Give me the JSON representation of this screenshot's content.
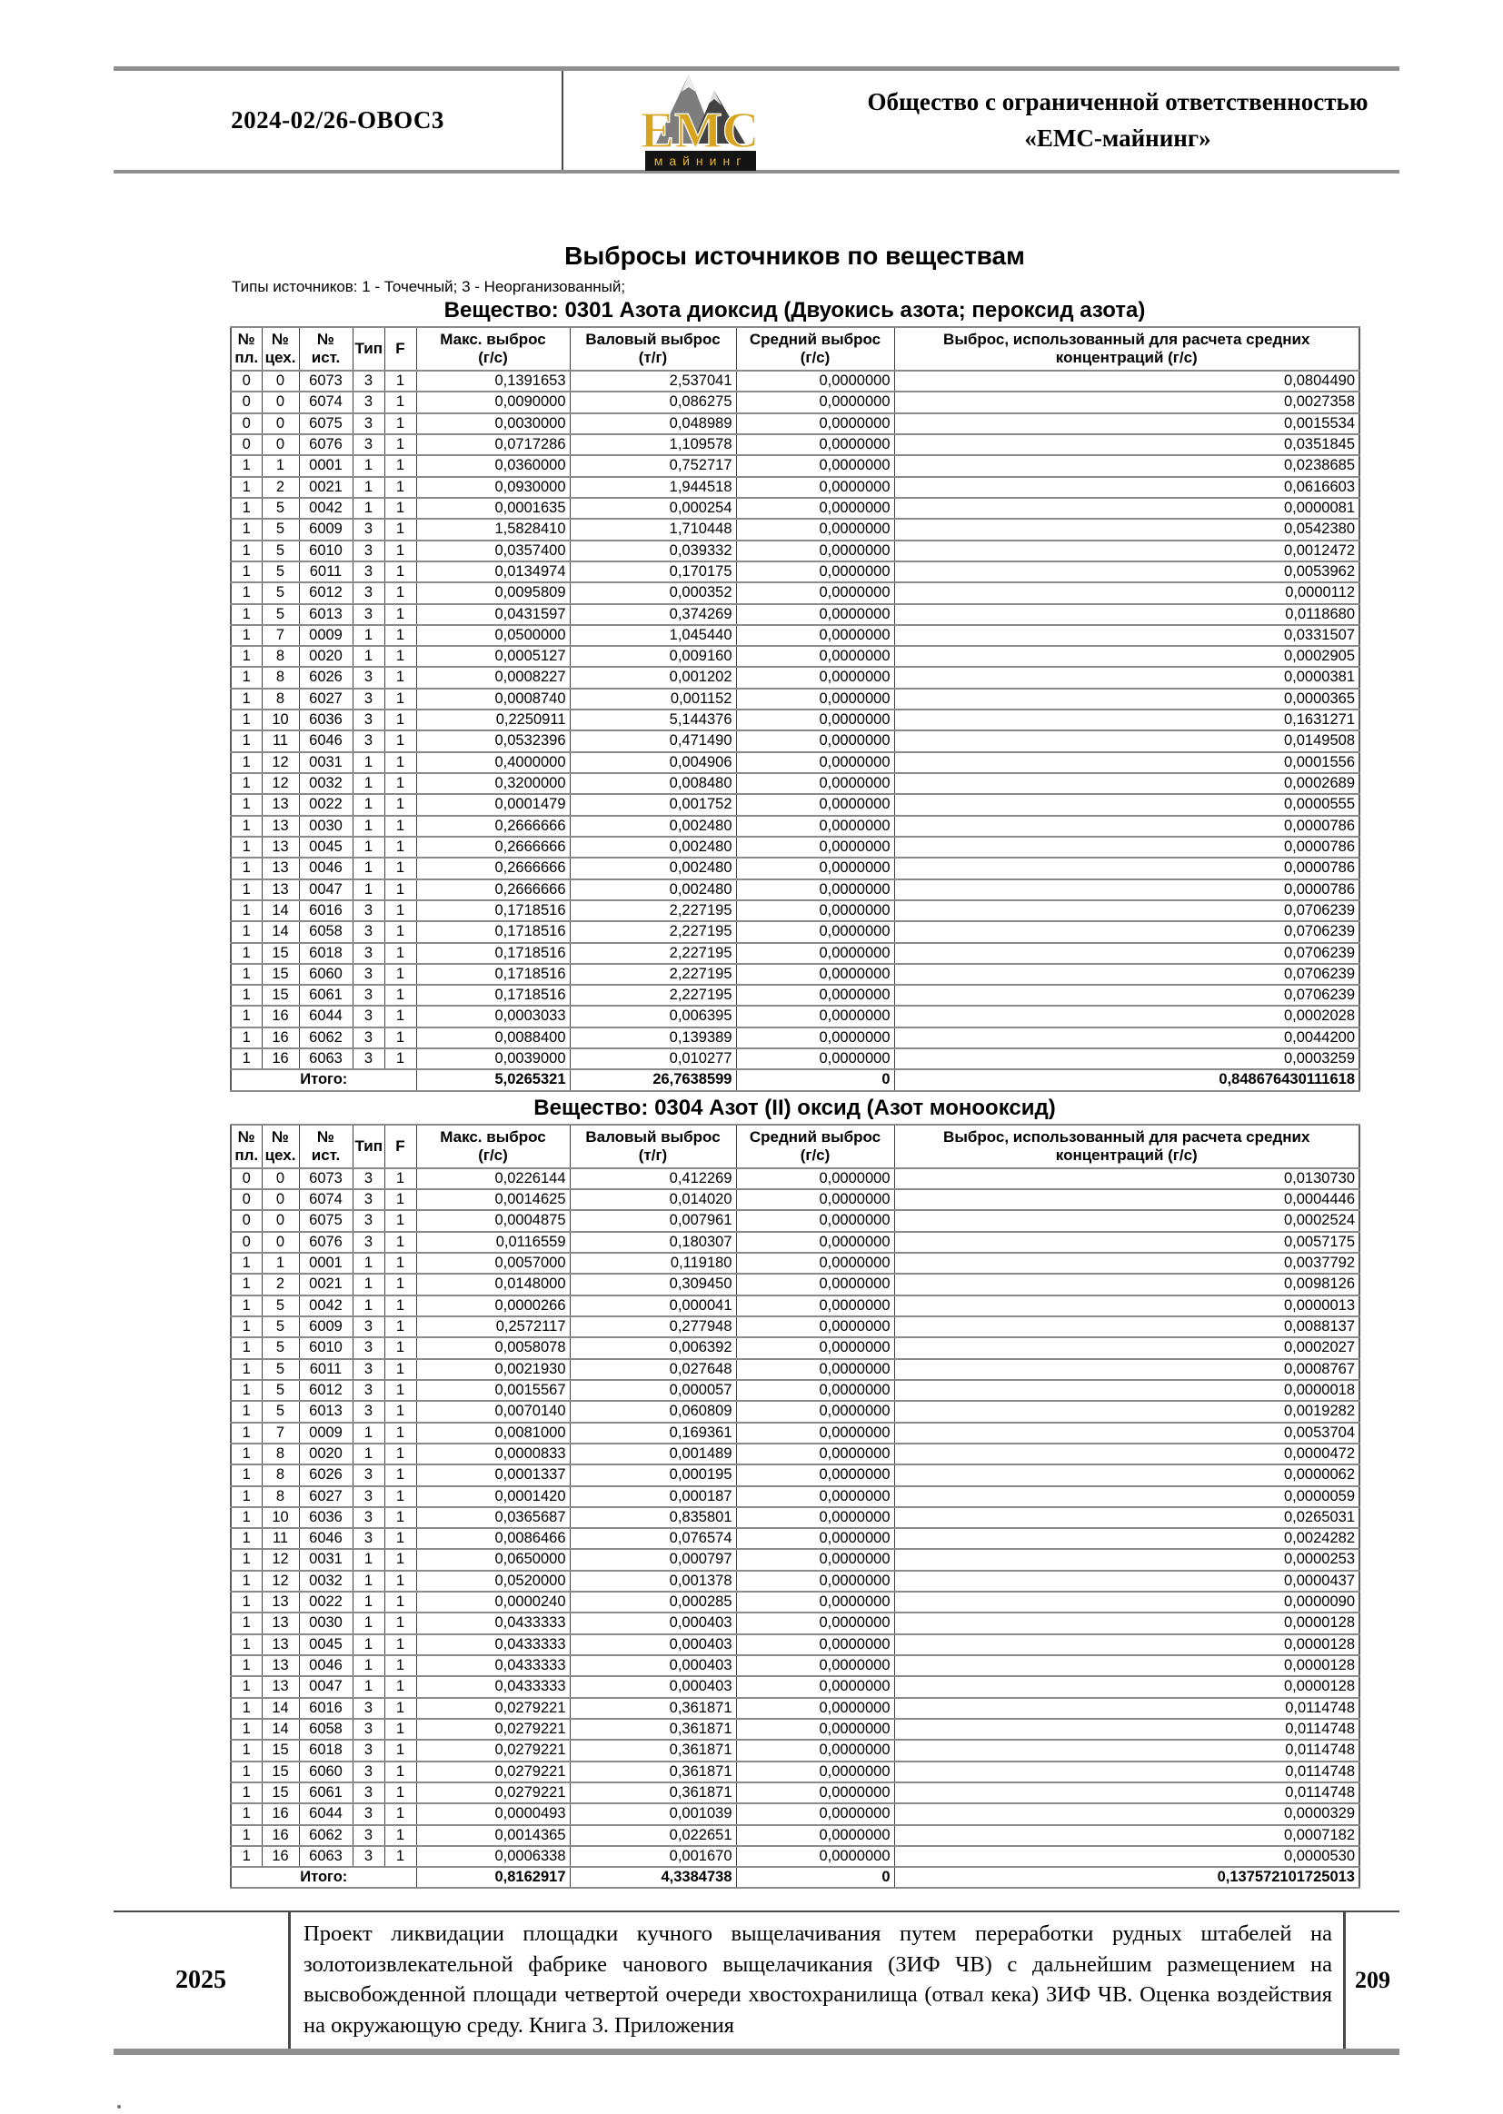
{
  "header": {
    "doc_number": "2024-02/26-ОВОС3",
    "logo": {
      "emc": "ЕМС",
      "mining": "майнинг"
    },
    "company_line1": "Общество с ограниченной ответственностью",
    "company_line2": "«ЕМС-майнинг»"
  },
  "page": {
    "title": "Выбросы источников по веществам",
    "source_types_note": "Типы источников: 1 - Точечный; 3 - Неорганизованный;"
  },
  "columns": [
    "№\nпл.",
    "№\nцех.",
    "№\nист.",
    "Тип",
    "F",
    "Макс. выброс\n(г/с)",
    "Валовый выброс\n(т/г)",
    "Средний выброс\n(г/с)",
    "Выброс, использованный для расчета средних\nконцентраций (г/с)"
  ],
  "tables": [
    {
      "title": "Вещество: 0301 Азота диоксид (Двуокись азота; пероксид азота)",
      "rows": [
        [
          "0",
          "0",
          "6073",
          "3",
          "1",
          "0,1391653",
          "2,537041",
          "0,0000000",
          "0,0804490"
        ],
        [
          "0",
          "0",
          "6074",
          "3",
          "1",
          "0,0090000",
          "0,086275",
          "0,0000000",
          "0,0027358"
        ],
        [
          "0",
          "0",
          "6075",
          "3",
          "1",
          "0,0030000",
          "0,048989",
          "0,0000000",
          "0,0015534"
        ],
        [
          "0",
          "0",
          "6076",
          "3",
          "1",
          "0,0717286",
          "1,109578",
          "0,0000000",
          "0,0351845"
        ],
        [
          "1",
          "1",
          "0001",
          "1",
          "1",
          "0,0360000",
          "0,752717",
          "0,0000000",
          "0,0238685"
        ],
        [
          "1",
          "2",
          "0021",
          "1",
          "1",
          "0,0930000",
          "1,944518",
          "0,0000000",
          "0,0616603"
        ],
        [
          "1",
          "5",
          "0042",
          "1",
          "1",
          "0,0001635",
          "0,000254",
          "0,0000000",
          "0,0000081"
        ],
        [
          "1",
          "5",
          "6009",
          "3",
          "1",
          "1,5828410",
          "1,710448",
          "0,0000000",
          "0,0542380"
        ],
        [
          "1",
          "5",
          "6010",
          "3",
          "1",
          "0,0357400",
          "0,039332",
          "0,0000000",
          "0,0012472"
        ],
        [
          "1",
          "5",
          "6011",
          "3",
          "1",
          "0,0134974",
          "0,170175",
          "0,0000000",
          "0,0053962"
        ],
        [
          "1",
          "5",
          "6012",
          "3",
          "1",
          "0,0095809",
          "0,000352",
          "0,0000000",
          "0,0000112"
        ],
        [
          "1",
          "5",
          "6013",
          "3",
          "1",
          "0,0431597",
          "0,374269",
          "0,0000000",
          "0,0118680"
        ],
        [
          "1",
          "7",
          "0009",
          "1",
          "1",
          "0,0500000",
          "1,045440",
          "0,0000000",
          "0,0331507"
        ],
        [
          "1",
          "8",
          "0020",
          "1",
          "1",
          "0,0005127",
          "0,009160",
          "0,0000000",
          "0,0002905"
        ],
        [
          "1",
          "8",
          "6026",
          "3",
          "1",
          "0,0008227",
          "0,001202",
          "0,0000000",
          "0,0000381"
        ],
        [
          "1",
          "8",
          "6027",
          "3",
          "1",
          "0,0008740",
          "0,001152",
          "0,0000000",
          "0,0000365"
        ],
        [
          "1",
          "10",
          "6036",
          "3",
          "1",
          "0,2250911",
          "5,144376",
          "0,0000000",
          "0,1631271"
        ],
        [
          "1",
          "11",
          "6046",
          "3",
          "1",
          "0,0532396",
          "0,471490",
          "0,0000000",
          "0,0149508"
        ],
        [
          "1",
          "12",
          "0031",
          "1",
          "1",
          "0,4000000",
          "0,004906",
          "0,0000000",
          "0,0001556"
        ],
        [
          "1",
          "12",
          "0032",
          "1",
          "1",
          "0,3200000",
          "0,008480",
          "0,0000000",
          "0,0002689"
        ],
        [
          "1",
          "13",
          "0022",
          "1",
          "1",
          "0,0001479",
          "0,001752",
          "0,0000000",
          "0,0000555"
        ],
        [
          "1",
          "13",
          "0030",
          "1",
          "1",
          "0,2666666",
          "0,002480",
          "0,0000000",
          "0,0000786"
        ],
        [
          "1",
          "13",
          "0045",
          "1",
          "1",
          "0,2666666",
          "0,002480",
          "0,0000000",
          "0,0000786"
        ],
        [
          "1",
          "13",
          "0046",
          "1",
          "1",
          "0,2666666",
          "0,002480",
          "0,0000000",
          "0,0000786"
        ],
        [
          "1",
          "13",
          "0047",
          "1",
          "1",
          "0,2666666",
          "0,002480",
          "0,0000000",
          "0,0000786"
        ],
        [
          "1",
          "14",
          "6016",
          "3",
          "1",
          "0,1718516",
          "2,227195",
          "0,0000000",
          "0,0706239"
        ],
        [
          "1",
          "14",
          "6058",
          "3",
          "1",
          "0,1718516",
          "2,227195",
          "0,0000000",
          "0,0706239"
        ],
        [
          "1",
          "15",
          "6018",
          "3",
          "1",
          "0,1718516",
          "2,227195",
          "0,0000000",
          "0,0706239"
        ],
        [
          "1",
          "15",
          "6060",
          "3",
          "1",
          "0,1718516",
          "2,227195",
          "0,0000000",
          "0,0706239"
        ],
        [
          "1",
          "15",
          "6061",
          "3",
          "1",
          "0,1718516",
          "2,227195",
          "0,0000000",
          "0,0706239"
        ],
        [
          "1",
          "16",
          "6044",
          "3",
          "1",
          "0,0003033",
          "0,006395",
          "0,0000000",
          "0,0002028"
        ],
        [
          "1",
          "16",
          "6062",
          "3",
          "1",
          "0,0088400",
          "0,139389",
          "0,0000000",
          "0,0044200"
        ],
        [
          "1",
          "16",
          "6063",
          "3",
          "1",
          "0,0039000",
          "0,010277",
          "0,0000000",
          "0,0003259"
        ]
      ],
      "total_label": "Итого:",
      "totals": [
        "5,0265321",
        "26,7638599",
        "0",
        "0,848676430111618"
      ]
    },
    {
      "title": "Вещество: 0304 Азот (II) оксид (Азот монооксид)",
      "rows": [
        [
          "0",
          "0",
          "6073",
          "3",
          "1",
          "0,0226144",
          "0,412269",
          "0,0000000",
          "0,0130730"
        ],
        [
          "0",
          "0",
          "6074",
          "3",
          "1",
          "0,0014625",
          "0,014020",
          "0,0000000",
          "0,0004446"
        ],
        [
          "0",
          "0",
          "6075",
          "3",
          "1",
          "0,0004875",
          "0,007961",
          "0,0000000",
          "0,0002524"
        ],
        [
          "0",
          "0",
          "6076",
          "3",
          "1",
          "0,0116559",
          "0,180307",
          "0,0000000",
          "0,0057175"
        ],
        [
          "1",
          "1",
          "0001",
          "1",
          "1",
          "0,0057000",
          "0,119180",
          "0,0000000",
          "0,0037792"
        ],
        [
          "1",
          "2",
          "0021",
          "1",
          "1",
          "0,0148000",
          "0,309450",
          "0,0000000",
          "0,0098126"
        ],
        [
          "1",
          "5",
          "0042",
          "1",
          "1",
          "0,0000266",
          "0,000041",
          "0,0000000",
          "0,0000013"
        ],
        [
          "1",
          "5",
          "6009",
          "3",
          "1",
          "0,2572117",
          "0,277948",
          "0,0000000",
          "0,0088137"
        ],
        [
          "1",
          "5",
          "6010",
          "3",
          "1",
          "0,0058078",
          "0,006392",
          "0,0000000",
          "0,0002027"
        ],
        [
          "1",
          "5",
          "6011",
          "3",
          "1",
          "0,0021930",
          "0,027648",
          "0,0000000",
          "0,0008767"
        ],
        [
          "1",
          "5",
          "6012",
          "3",
          "1",
          "0,0015567",
          "0,000057",
          "0,0000000",
          "0,0000018"
        ],
        [
          "1",
          "5",
          "6013",
          "3",
          "1",
          "0,0070140",
          "0,060809",
          "0,0000000",
          "0,0019282"
        ],
        [
          "1",
          "7",
          "0009",
          "1",
          "1",
          "0,0081000",
          "0,169361",
          "0,0000000",
          "0,0053704"
        ],
        [
          "1",
          "8",
          "0020",
          "1",
          "1",
          "0,0000833",
          "0,001489",
          "0,0000000",
          "0,0000472"
        ],
        [
          "1",
          "8",
          "6026",
          "3",
          "1",
          "0,0001337",
          "0,000195",
          "0,0000000",
          "0,0000062"
        ],
        [
          "1",
          "8",
          "6027",
          "3",
          "1",
          "0,0001420",
          "0,000187",
          "0,0000000",
          "0,0000059"
        ],
        [
          "1",
          "10",
          "6036",
          "3",
          "1",
          "0,0365687",
          "0,835801",
          "0,0000000",
          "0,0265031"
        ],
        [
          "1",
          "11",
          "6046",
          "3",
          "1",
          "0,0086466",
          "0,076574",
          "0,0000000",
          "0,0024282"
        ],
        [
          "1",
          "12",
          "0031",
          "1",
          "1",
          "0,0650000",
          "0,000797",
          "0,0000000",
          "0,0000253"
        ],
        [
          "1",
          "12",
          "0032",
          "1",
          "1",
          "0,0520000",
          "0,001378",
          "0,0000000",
          "0,0000437"
        ],
        [
          "1",
          "13",
          "0022",
          "1",
          "1",
          "0,0000240",
          "0,000285",
          "0,0000000",
          "0,0000090"
        ],
        [
          "1",
          "13",
          "0030",
          "1",
          "1",
          "0,0433333",
          "0,000403",
          "0,0000000",
          "0,0000128"
        ],
        [
          "1",
          "13",
          "0045",
          "1",
          "1",
          "0,0433333",
          "0,000403",
          "0,0000000",
          "0,0000128"
        ],
        [
          "1",
          "13",
          "0046",
          "1",
          "1",
          "0,0433333",
          "0,000403",
          "0,0000000",
          "0,0000128"
        ],
        [
          "1",
          "13",
          "0047",
          "1",
          "1",
          "0,0433333",
          "0,000403",
          "0,0000000",
          "0,0000128"
        ],
        [
          "1",
          "14",
          "6016",
          "3",
          "1",
          "0,0279221",
          "0,361871",
          "0,0000000",
          "0,0114748"
        ],
        [
          "1",
          "14",
          "6058",
          "3",
          "1",
          "0,0279221",
          "0,361871",
          "0,0000000",
          "0,0114748"
        ],
        [
          "1",
          "15",
          "6018",
          "3",
          "1",
          "0,0279221",
          "0,361871",
          "0,0000000",
          "0,0114748"
        ],
        [
          "1",
          "15",
          "6060",
          "3",
          "1",
          "0,0279221",
          "0,361871",
          "0,0000000",
          "0,0114748"
        ],
        [
          "1",
          "15",
          "6061",
          "3",
          "1",
          "0,0279221",
          "0,361871",
          "0,0000000",
          "0,0114748"
        ],
        [
          "1",
          "16",
          "6044",
          "3",
          "1",
          "0,0000493",
          "0,001039",
          "0,0000000",
          "0,0000329"
        ],
        [
          "1",
          "16",
          "6062",
          "3",
          "1",
          "0,0014365",
          "0,022651",
          "0,0000000",
          "0,0007182"
        ],
        [
          "1",
          "16",
          "6063",
          "3",
          "1",
          "0,0006338",
          "0,001670",
          "0,0000000",
          "0,0000530"
        ]
      ],
      "total_label": "Итого:",
      "totals": [
        "0,8162917",
        "4,3384738",
        "0",
        "0,137572101725013"
      ]
    }
  ],
  "footer": {
    "year": "2025",
    "page_number": "209",
    "description": "Проект ликвидации площадки кучного выщелачивания путем переработки рудных штабелей на золотоизвлекательной фабрике чанового выщелачикания (ЗИФ ЧВ) с дальнейшим размещением на высвобожденной площади четвертой очереди хвостохранилища (отвал кека) ЗИФ ЧВ. Оценка воздействия на окружающую среду. Книга 3. Приложения"
  }
}
